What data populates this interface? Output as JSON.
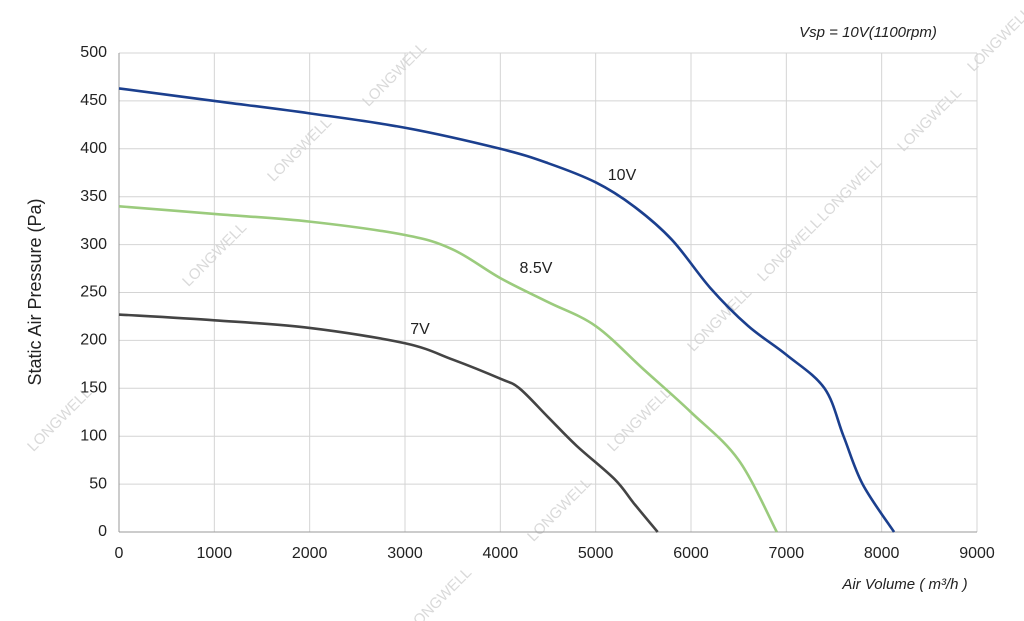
{
  "chart_data": {
    "type": "line",
    "title": "Vsp = 10V(1100rpm)",
    "xlabel": "Air Volume ( m³/h )",
    "ylabel": "Static Air Pressure  (Pa)",
    "watermark": "LONGWELL",
    "xlim": [
      0,
      9000
    ],
    "xticks": [
      0,
      1000,
      2000,
      3000,
      4000,
      5000,
      6000,
      7000,
      8000,
      9000
    ],
    "ylim": [
      0,
      500
    ],
    "yticks": [
      0,
      50,
      100,
      150,
      200,
      250,
      300,
      350,
      400,
      450,
      500
    ],
    "grid": true,
    "series": [
      {
        "name": "10V",
        "color": "#1b3f8e",
        "x": [
          0,
          1000,
          2000,
          3000,
          4000,
          4500,
          5000,
          5400,
          5800,
          6200,
          6600,
          7000,
          7400,
          7600,
          7800,
          8130
        ],
        "values": [
          463,
          450,
          437,
          422,
          400,
          385,
          365,
          340,
          305,
          255,
          215,
          185,
          150,
          100,
          50,
          0
        ]
      },
      {
        "name": "8.5V",
        "color": "#9bcb7d",
        "x": [
          0,
          1000,
          2000,
          3000,
          3500,
          4000,
          4500,
          5000,
          5500,
          6000,
          6500,
          6900
        ],
        "values": [
          340,
          332,
          324,
          310,
          295,
          265,
          240,
          215,
          170,
          125,
          75,
          0
        ]
      },
      {
        "name": "7V",
        "color": "#444444",
        "x": [
          0,
          1000,
          2000,
          3000,
          3500,
          4000,
          4200,
          4500,
          4800,
          5200,
          5400,
          5650
        ],
        "values": [
          227,
          221,
          213,
          197,
          180,
          160,
          150,
          120,
          90,
          55,
          30,
          0
        ]
      }
    ]
  }
}
